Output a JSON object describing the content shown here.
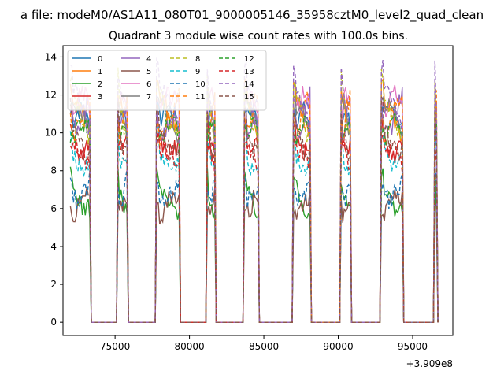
{
  "suptitle": "a file: modeM0/AS1A11_080T01_9000005146_35958cztM0_level2_quad_clean",
  "chart_data": {
    "type": "line",
    "title": "Quadrant 3 module wise count rates with 100.0s bins.",
    "xlabel": "",
    "ylabel": "",
    "x_offset_label": "+3.909e8",
    "xlim": [
      71500,
      97700
    ],
    "ylim": [
      -0.7,
      14.6
    ],
    "x_ticks": [
      75000,
      80000,
      85000,
      90000,
      95000
    ],
    "x_tick_labels": [
      "75000",
      "80000",
      "85000",
      "90000",
      "95000"
    ],
    "y_ticks": [
      0,
      2,
      4,
      6,
      8,
      10,
      12,
      14
    ],
    "y_tick_labels": [
      "0",
      "2",
      "4",
      "6",
      "8",
      "10",
      "12",
      "14"
    ],
    "grid": false,
    "legend": {
      "position": "top-left",
      "columns": 4
    },
    "active_intervals": [
      [
        72000,
        73300
      ],
      [
        75200,
        75800
      ],
      [
        77800,
        79300
      ],
      [
        81200,
        81700
      ],
      [
        83700,
        84600
      ],
      [
        87000,
        88100
      ],
      [
        90200,
        90800
      ],
      [
        92900,
        94300
      ],
      [
        96500,
        96600
      ]
    ],
    "series": [
      {
        "name": "0",
        "level": 10.2,
        "color": "#1f77b4",
        "dash": "solid"
      },
      {
        "name": "1",
        "level": 10.6,
        "color": "#ff7f0e",
        "dash": "solid"
      },
      {
        "name": "2",
        "level": 6.6,
        "color": "#2ca02c",
        "dash": "solid"
      },
      {
        "name": "3",
        "level": 9.9,
        "color": "#d62728",
        "dash": "solid"
      },
      {
        "name": "4",
        "level": 11.2,
        "color": "#9467bd",
        "dash": "solid"
      },
      {
        "name": "5",
        "level": 6.1,
        "color": "#8c564b",
        "dash": "solid"
      },
      {
        "name": "6",
        "level": 10.9,
        "color": "#e377c2",
        "dash": "solid"
      },
      {
        "name": "7",
        "level": 10.4,
        "color": "#7f7f7f",
        "dash": "solid"
      },
      {
        "name": "8",
        "level": 11.0,
        "color": "#bcbd22",
        "dash": "dashed"
      },
      {
        "name": "9",
        "level": 9.0,
        "color": "#17becf",
        "dash": "dashed"
      },
      {
        "name": "10",
        "level": 7.2,
        "color": "#1f77b4",
        "dash": "dashed"
      },
      {
        "name": "11",
        "level": 10.8,
        "color": "#ff7f0e",
        "dash": "dashed"
      },
      {
        "name": "12",
        "level": 9.6,
        "color": "#2ca02c",
        "dash": "dashed"
      },
      {
        "name": "13",
        "level": 8.4,
        "color": "#d62728",
        "dash": "dashed"
      },
      {
        "name": "14",
        "level": 11.4,
        "color": "#9467bd",
        "dash": "dashed"
      },
      {
        "name": "15",
        "level": 10.0,
        "color": "#8c564b",
        "dash": "dashed"
      }
    ]
  }
}
